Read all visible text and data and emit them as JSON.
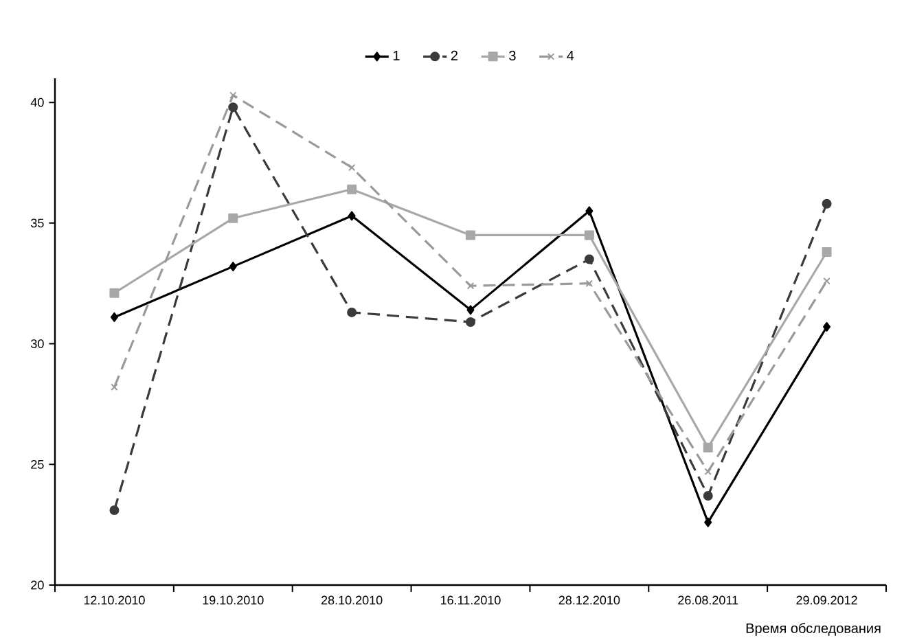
{
  "chart_data": {
    "type": "line",
    "xlabel": "Время обследования",
    "categories": [
      "12.10.2010",
      "19.10.2010",
      "28.10.2010",
      "16.11.2010",
      "28.12.2010",
      "26.08.2011",
      "29.09.2012"
    ],
    "series": [
      {
        "name": "1",
        "color": "#000000",
        "marker": "diamond",
        "line_style": "solid",
        "values": [
          31.1,
          33.2,
          35.3,
          31.4,
          35.5,
          22.6,
          30.7
        ]
      },
      {
        "name": "2",
        "color": "#3a3a3a",
        "marker": "circle",
        "line_style": "dashed",
        "values": [
          23.1,
          39.8,
          31.3,
          30.9,
          33.5,
          23.7,
          35.8
        ]
      },
      {
        "name": "3",
        "color": "#a8a8a8",
        "marker": "square",
        "line_style": "solid",
        "values": [
          32.1,
          35.2,
          36.4,
          34.5,
          34.5,
          25.7,
          33.8
        ]
      },
      {
        "name": "4",
        "color": "#9a9a9a",
        "marker": "cross",
        "line_style": "dashed",
        "values": [
          28.2,
          40.3,
          37.3,
          32.4,
          32.5,
          24.7,
          32.6
        ]
      }
    ],
    "ylim": [
      20,
      41
    ],
    "yticks": [
      20,
      25,
      30,
      35,
      40
    ],
    "grid": false,
    "legend": "top"
  }
}
